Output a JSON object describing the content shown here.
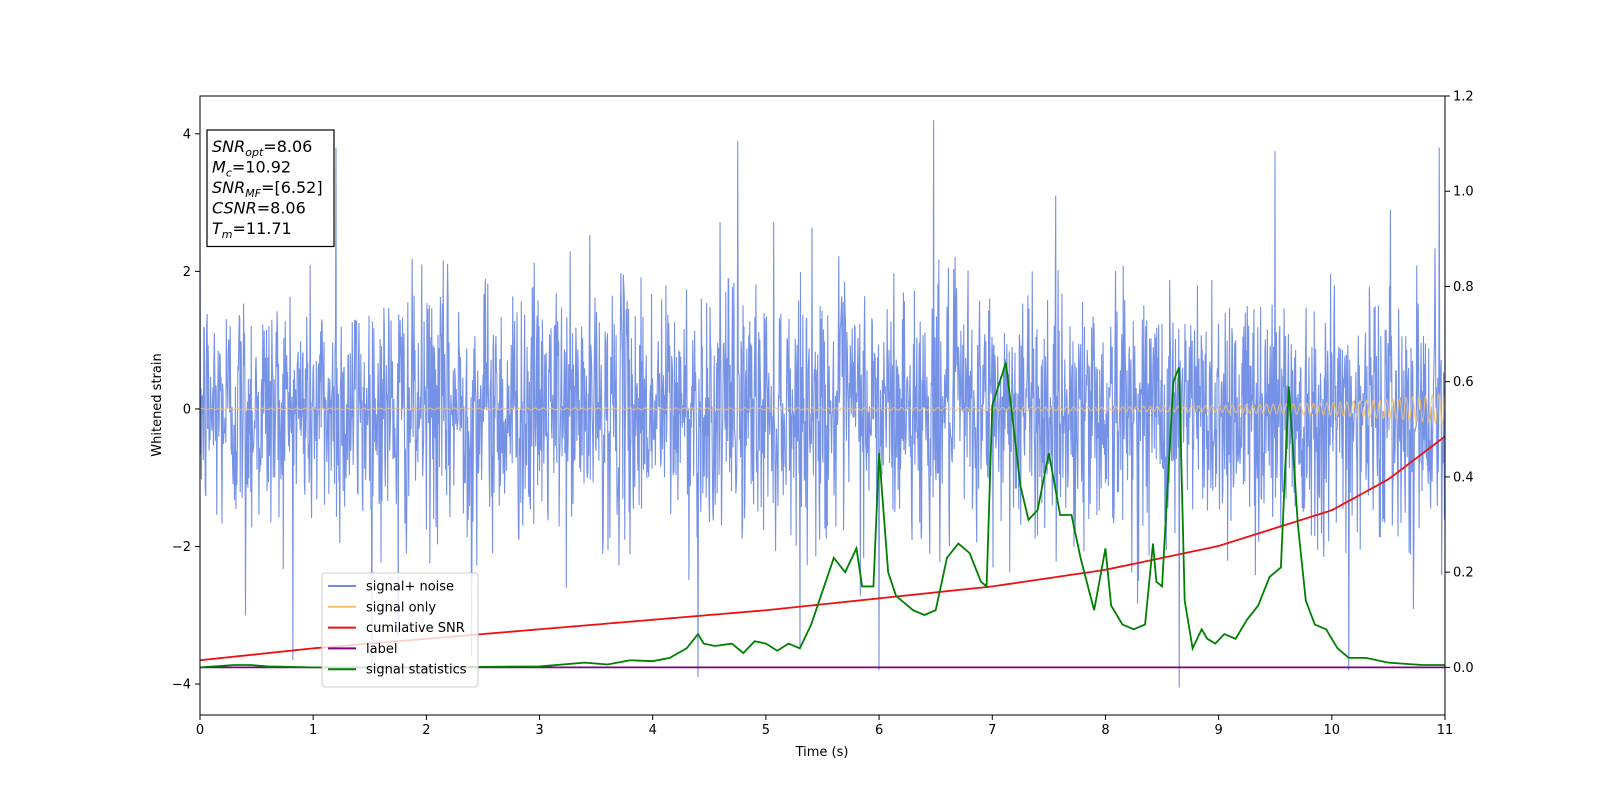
{
  "chart_data": {
    "type": "line",
    "xlabel": "Time (s)",
    "ylabel": "Whitened strain",
    "xlim": [
      0,
      11
    ],
    "ylim": [
      -4.45,
      4.55
    ],
    "y2lim": [
      -0.1,
      1.2
    ],
    "xticks": [
      "0",
      "1",
      "2",
      "3",
      "4",
      "5",
      "6",
      "7",
      "8",
      "9",
      "10",
      "11"
    ],
    "yticks": [
      "−4",
      "−2",
      "0",
      "2",
      "4"
    ],
    "y2ticks": [
      "0.0",
      "0.2",
      "0.4",
      "0.6",
      "0.8",
      "1.0",
      "1.2"
    ],
    "legend_position": "lower-left",
    "annotation": [
      {
        "base": "SNR",
        "sub": "opt",
        "value": "=8.06"
      },
      {
        "base": "M",
        "sub": "c",
        "value": "=10.92"
      },
      {
        "base": "SNR",
        "sub": "MF",
        "value": "=[6.52]"
      },
      {
        "base": "CSNR",
        "sub": "",
        "value": "=8.06"
      },
      {
        "base": "T",
        "sub": "m",
        "value": "=11.71"
      }
    ],
    "series": [
      {
        "name": "signal+ noise",
        "axis": "left",
        "color": "#6f8ce6",
        "kind": "noise",
        "typical_amplitude": 1.9,
        "peak_amplitude": 4.2,
        "x": [
          0.4,
          1.2,
          1.75,
          2.4,
          4.4,
          4.75,
          6.0,
          6.48,
          8.65,
          9.5,
          10.15,
          10.95
        ],
        "y": [
          -3.0,
          3.8,
          -3.3,
          -3.6,
          -3.9,
          3.9,
          -3.8,
          4.2,
          -4.05,
          3.75,
          -3.8,
          3.8
        ]
      },
      {
        "name": "signal only",
        "axis": "left",
        "color": "#f5c26b",
        "kind": "chirp",
        "x": [
          0,
          5,
          8,
          9,
          10,
          10.5,
          11
        ],
        "amplitude": [
          0.01,
          0.015,
          0.03,
          0.05,
          0.09,
          0.14,
          0.22
        ]
      },
      {
        "name": "cumilative SNR",
        "axis": "right",
        "color": "#ee1111",
        "x": [
          0,
          1,
          2,
          3,
          4,
          5,
          6,
          7,
          8,
          9,
          10,
          10.5,
          11
        ],
        "y": [
          0.015,
          0.04,
          0.06,
          0.08,
          0.1,
          0.12,
          0.145,
          0.17,
          0.205,
          0.255,
          0.33,
          0.395,
          0.485
        ]
      },
      {
        "name": "label",
        "axis": "right",
        "color": "#800080",
        "x": [
          0,
          11
        ],
        "y": [
          0.0,
          0.0
        ]
      },
      {
        "name": "signal statistics",
        "axis": "right",
        "color": "#008000",
        "x": [
          0,
          0.3,
          0.45,
          0.6,
          1,
          2,
          3,
          3.4,
          3.6,
          3.8,
          4.0,
          4.15,
          4.3,
          4.4,
          4.45,
          4.55,
          4.7,
          4.8,
          4.9,
          5.0,
          5.1,
          5.2,
          5.3,
          5.4,
          5.5,
          5.6,
          5.7,
          5.8,
          5.85,
          5.95,
          6.0,
          6.08,
          6.15,
          6.2,
          6.3,
          6.4,
          6.5,
          6.6,
          6.7,
          6.8,
          6.9,
          6.95,
          7.0,
          7.12,
          7.25,
          7.32,
          7.4,
          7.5,
          7.6,
          7.7,
          7.78,
          7.9,
          8.0,
          8.05,
          8.15,
          8.25,
          8.35,
          8.42,
          8.45,
          8.5,
          8.6,
          8.65,
          8.7,
          8.77,
          8.85,
          8.9,
          8.97,
          9.05,
          9.15,
          9.25,
          9.35,
          9.45,
          9.55,
          9.62,
          9.7,
          9.77,
          9.85,
          9.95,
          10.05,
          10.15,
          10.3,
          10.5,
          10.8,
          11
        ],
        "y": [
          0.0,
          0.005,
          0.005,
          0.002,
          0.0,
          0.0,
          0.002,
          0.01,
          0.006,
          0.015,
          0.013,
          0.02,
          0.04,
          0.07,
          0.05,
          0.045,
          0.05,
          0.03,
          0.055,
          0.05,
          0.035,
          0.05,
          0.04,
          0.09,
          0.16,
          0.23,
          0.2,
          0.25,
          0.17,
          0.17,
          0.45,
          0.2,
          0.15,
          0.14,
          0.12,
          0.11,
          0.12,
          0.23,
          0.26,
          0.24,
          0.18,
          0.17,
          0.55,
          0.64,
          0.38,
          0.31,
          0.33,
          0.45,
          0.32,
          0.32,
          0.23,
          0.12,
          0.25,
          0.13,
          0.09,
          0.08,
          0.09,
          0.26,
          0.18,
          0.17,
          0.6,
          0.63,
          0.14,
          0.04,
          0.08,
          0.06,
          0.05,
          0.07,
          0.06,
          0.1,
          0.13,
          0.19,
          0.21,
          0.59,
          0.3,
          0.14,
          0.09,
          0.08,
          0.04,
          0.02,
          0.02,
          0.01,
          0.005,
          0.005
        ]
      }
    ]
  }
}
